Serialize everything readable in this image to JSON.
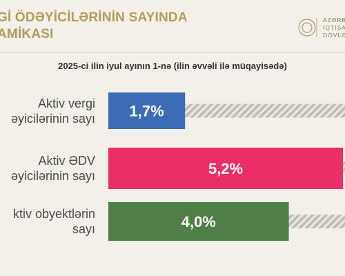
{
  "header": {
    "title": "Gİ ÖDƏYİCİLƏRİNİN SAYINDA\nAMİKASI",
    "logo_text": "AZƏRBA\nİQTİSAD\nDÖVLƏT"
  },
  "chart_data": {
    "type": "hbar",
    "subtitle": "2025-ci ilin iyul ayının 1-nə (ilin əvvəli ilə müqayisədə)",
    "categories": [
      "Aktiv vergi\nəyicilərinin sayı",
      "Aktiv ƏDV\nəyicilərinin sayı",
      "ktiv obyektlərin\nsayı"
    ],
    "values": [
      1.7,
      5.2,
      4.0
    ],
    "value_labels": [
      "1,7%",
      "5,2%",
      "4,0%"
    ],
    "colors": [
      "#3c6db4",
      "#e92f66",
      "#4f7e46"
    ]
  }
}
